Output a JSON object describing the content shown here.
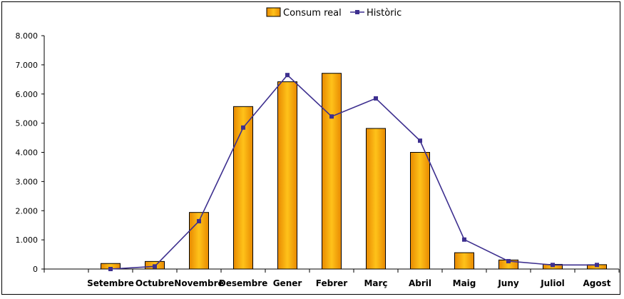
{
  "chart_data": {
    "type": "bar",
    "title": "",
    "xlabel": "",
    "ylabel": "",
    "categories": [
      "Setembre",
      "Octubre",
      "Novembre",
      "Desembre",
      "Gener",
      "Febrer",
      "Març",
      "Abril",
      "Maig",
      "Juny",
      "Juliol",
      "Agost"
    ],
    "series": [
      {
        "name": "Consum real",
        "type": "bar",
        "color": "#FFA500",
        "values": [
          190,
          260,
          1940,
          5570,
          6420,
          6710,
          4820,
          4000,
          560,
          310,
          160,
          150
        ]
      },
      {
        "name": "Històric",
        "type": "line",
        "color": "#3D2F8F",
        "values": [
          0,
          90,
          1640,
          4850,
          6650,
          5230,
          5850,
          4400,
          1010,
          270,
          140,
          140
        ]
      }
    ],
    "ylim": [
      0,
      8000
    ],
    "yticks": [
      0,
      1000,
      2000,
      3000,
      4000,
      5000,
      6000,
      7000,
      8000
    ],
    "ytick_labels": [
      "0",
      "1.000",
      "2.000",
      "3.000",
      "4.000",
      "5.000",
      "6.000",
      "7.000",
      "8.000"
    ],
    "grid": false,
    "legend_position": "top-center"
  }
}
